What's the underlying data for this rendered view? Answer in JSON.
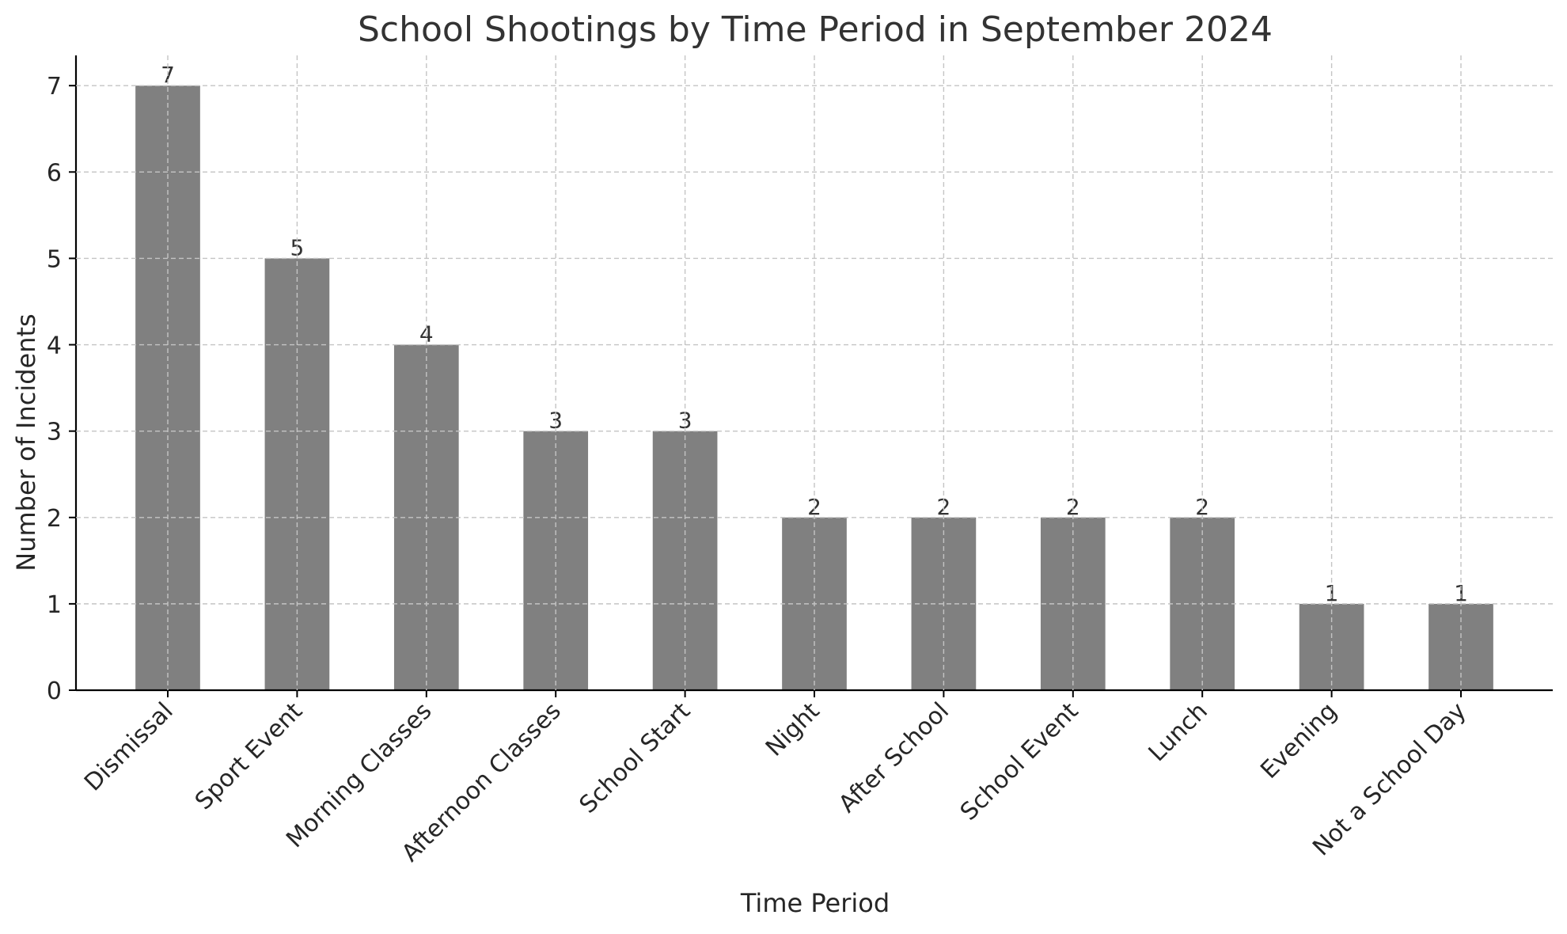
{
  "chart_data": {
    "type": "bar",
    "title": "School Shootings by Time Period in September 2024",
    "xlabel": "Time Period",
    "ylabel": "Number of Incidents",
    "categories": [
      "Dismissal",
      "Sport Event",
      "Morning Classes",
      "Afternoon Classes",
      "School Start",
      "Night",
      "After School",
      "School Event",
      "Lunch",
      "Evening",
      "Not a School Day"
    ],
    "values": [
      7,
      5,
      4,
      3,
      3,
      2,
      2,
      2,
      2,
      1,
      1
    ],
    "yticks": [
      0,
      1,
      2,
      3,
      4,
      5,
      6,
      7
    ],
    "ylim": [
      0,
      7.35
    ],
    "bar_color": "#808080",
    "grid": true,
    "value_labels": true
  }
}
